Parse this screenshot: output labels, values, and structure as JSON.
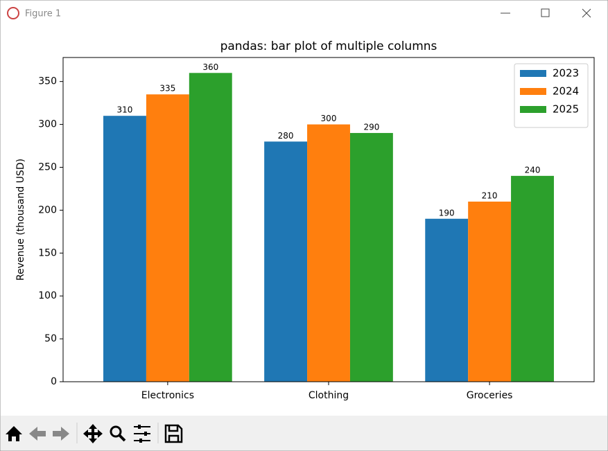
{
  "window": {
    "title": "Figure 1"
  },
  "chart_data": {
    "type": "bar",
    "title": "pandas: bar plot of multiple columns",
    "y_label": "Revenue (thousand USD)",
    "categories": [
      "Electronics",
      "Clothing",
      "Groceries"
    ],
    "series": [
      {
        "name": "2023",
        "color": "#1f77b4",
        "values": [
          310,
          280,
          190
        ]
      },
      {
        "name": "2024",
        "color": "#ff7f0e",
        "values": [
          335,
          300,
          210
        ]
      },
      {
        "name": "2025",
        "color": "#2ca02c",
        "values": [
          360,
          290,
          240
        ]
      }
    ],
    "ylim": [
      0,
      378
    ],
    "yticks": [
      0,
      50,
      100,
      150,
      200,
      250,
      300,
      350
    ],
    "grid": false,
    "legend": "upper right"
  }
}
